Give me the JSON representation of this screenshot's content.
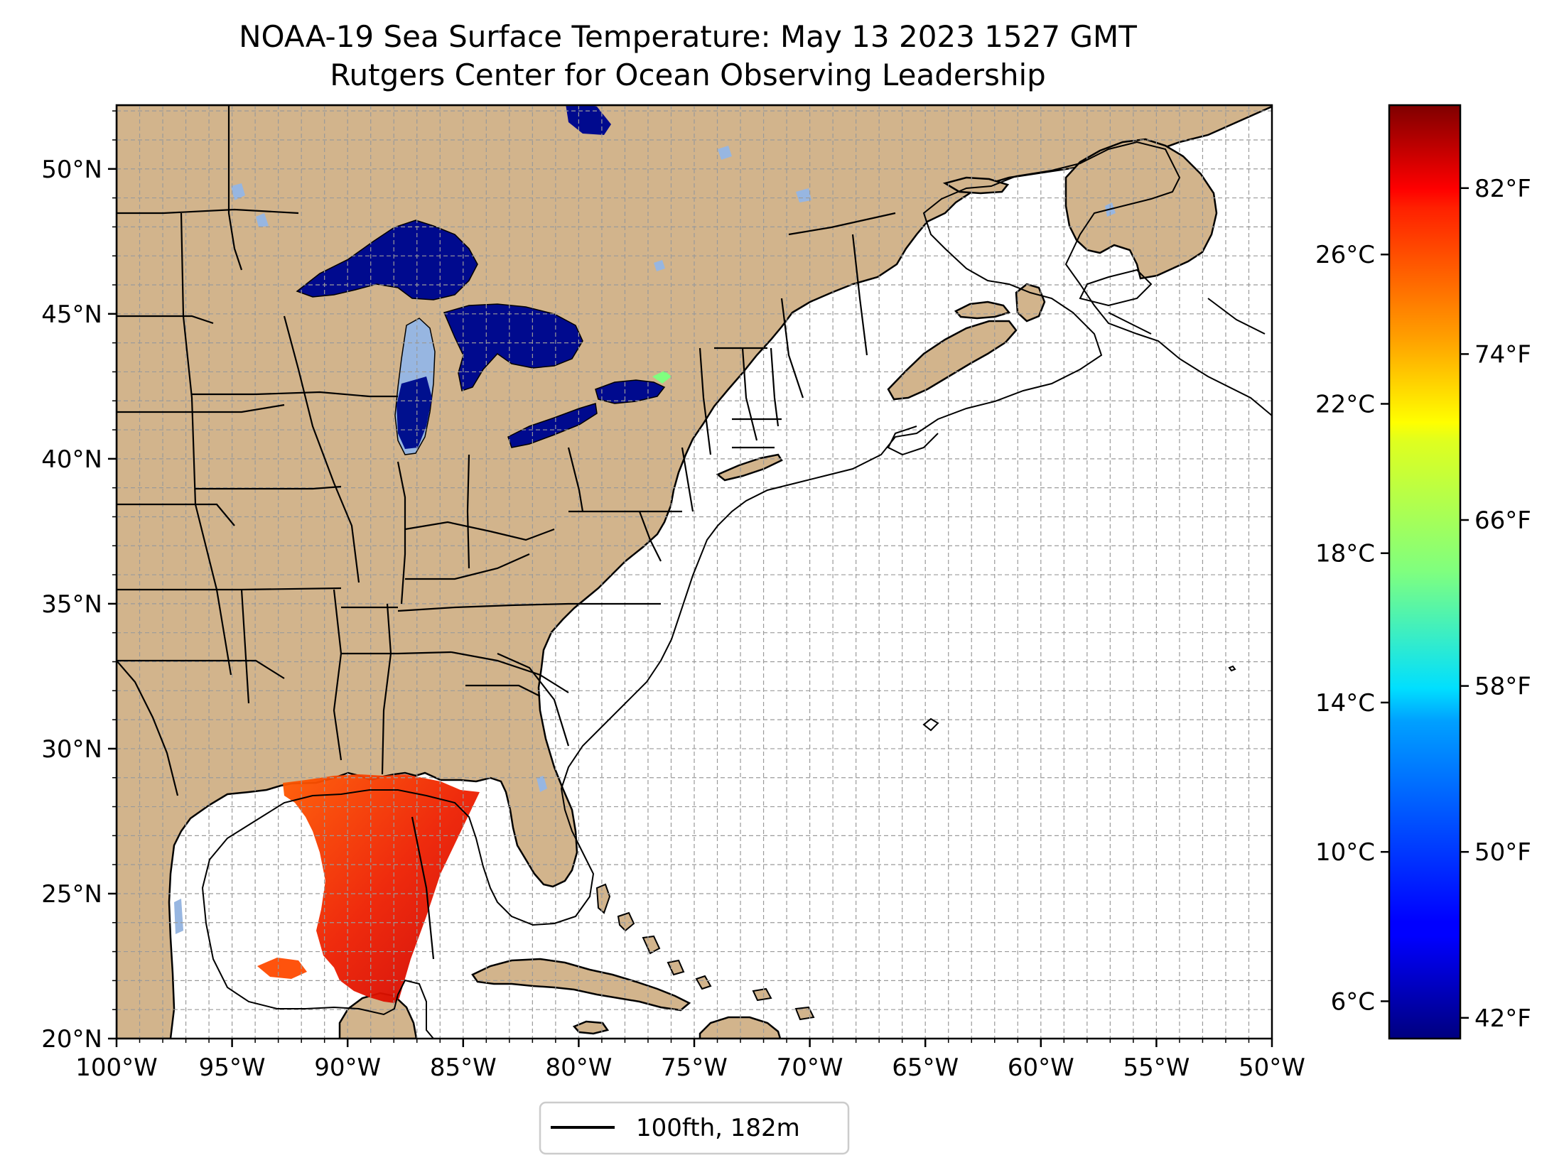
{
  "title": {
    "line1": "NOAA-19 Sea Surface Temperature: May 13 2023 1527 GMT",
    "line2": "Rutgers Center for Ocean Observing Leadership"
  },
  "map": {
    "lon_range": [
      -100,
      -50
    ],
    "lat_range": [
      20,
      52.2
    ],
    "land_color": "#d2b48c",
    "lake_color": "#97b6e1",
    "ocean_color": "#ffffff",
    "grid": "on",
    "x_ticks": [
      {
        "value": -100,
        "label": "100°W"
      },
      {
        "value": -95,
        "label": "95°W"
      },
      {
        "value": -90,
        "label": "90°W"
      },
      {
        "value": -85,
        "label": "85°W"
      },
      {
        "value": -80,
        "label": "80°W"
      },
      {
        "value": -75,
        "label": "75°W"
      },
      {
        "value": -70,
        "label": "70°W"
      },
      {
        "value": -65,
        "label": "65°W"
      },
      {
        "value": -60,
        "label": "60°W"
      },
      {
        "value": -55,
        "label": "55°W"
      },
      {
        "value": -50,
        "label": "50°W"
      }
    ],
    "y_ticks": [
      {
        "value": 20,
        "label": "20°N"
      },
      {
        "value": 25,
        "label": "25°N"
      },
      {
        "value": 30,
        "label": "30°N"
      },
      {
        "value": 35,
        "label": "35°N"
      },
      {
        "value": 40,
        "label": "40°N"
      },
      {
        "value": 45,
        "label": "45°N"
      },
      {
        "value": 50,
        "label": "50°N"
      }
    ]
  },
  "colorbar": {
    "colormap": "jet",
    "celsius_range": [
      5.0,
      30.0
    ],
    "celsius_ticks": [
      {
        "value": 6,
        "label": "6°C"
      },
      {
        "value": 10,
        "label": "10°C"
      },
      {
        "value": 14,
        "label": "14°C"
      },
      {
        "value": 18,
        "label": "18°C"
      },
      {
        "value": 22,
        "label": "22°C"
      },
      {
        "value": 26,
        "label": "26°C"
      }
    ],
    "fahrenheit_ticks": [
      {
        "value": 42,
        "label": "42°F"
      },
      {
        "value": 50,
        "label": "50°F"
      },
      {
        "value": 58,
        "label": "58°F"
      },
      {
        "value": 66,
        "label": "66°F"
      },
      {
        "value": 74,
        "label": "74°F"
      },
      {
        "value": 82,
        "label": "82°F"
      }
    ]
  },
  "legend": {
    "label": "100fth, 182m",
    "position": "bottom-center"
  }
}
